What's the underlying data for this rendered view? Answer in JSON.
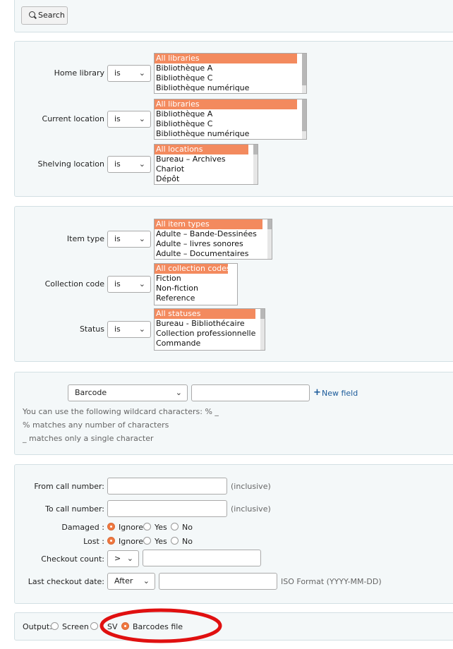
{
  "search_button": {
    "label": "Search"
  },
  "location_group": {
    "home_library": {
      "label": "Home library",
      "operator": "is",
      "options": [
        "All libraries",
        "Bibliothèque A",
        "Bibliothèque C",
        "Bibliothèque numérique"
      ]
    },
    "current_location": {
      "label": "Current location",
      "operator": "is",
      "options": [
        "All libraries",
        "Bibliothèque A",
        "Bibliothèque C",
        "Bibliothèque numérique"
      ]
    },
    "shelving_location": {
      "label": "Shelving location",
      "operator": "is",
      "options": [
        "All locations",
        "Bureau – Archives",
        "Chariot",
        "Dépôt"
      ]
    }
  },
  "item_group": {
    "item_type": {
      "label": "Item type",
      "operator": "is",
      "options": [
        "All item types",
        "Adulte – Bande-Dessinées",
        "Adulte – livres sonores",
        "Adulte – Documentaires"
      ]
    },
    "collection_code": {
      "label": "Collection code",
      "operator": "is",
      "options": [
        "All collection codes",
        "Fiction",
        "Non-fiction",
        "Reference"
      ]
    },
    "status": {
      "label": "Status",
      "operator": "is",
      "options": [
        "All statuses",
        "Bureau - Bibliothécaire",
        "Collection professionnelle",
        "Commande"
      ]
    }
  },
  "field_group": {
    "field_select": "Barcode",
    "field_value": "",
    "new_field_label": "New field",
    "wildcard_hint": "You can use the following wildcard characters: % _",
    "percent_hint": "% matches any number of characters",
    "underscore_hint": "_ matches only a single character"
  },
  "misc_group": {
    "from_call_number": {
      "label": "From call number:",
      "value": "",
      "hint": "(inclusive)"
    },
    "to_call_number": {
      "label": "To call number:",
      "value": "",
      "hint": "(inclusive)"
    },
    "damaged": {
      "label": "Damaged :",
      "options": [
        "Ignore",
        "Yes",
        "No"
      ],
      "selected": "Ignore"
    },
    "lost": {
      "label": "Lost :",
      "options": [
        "Ignore",
        "Yes",
        "No"
      ],
      "selected": "Ignore"
    },
    "checkout_count": {
      "label": "Checkout count:",
      "operator": ">",
      "value": ""
    },
    "last_checkout_date": {
      "label": "Last checkout date:",
      "operator": "After",
      "value": "",
      "hint": "ISO Format (YYYY-MM-DD)"
    }
  },
  "output_group": {
    "label": "Output:",
    "options": [
      "Screen",
      "SV",
      "Barcodes file"
    ],
    "selected": "Barcodes file",
    "annotation_color": "#e01010"
  },
  "colors": {
    "selected_option": "#f38a5e",
    "link": "#1a5a9a",
    "radio_on": "#f07840",
    "panel_bg": "#f4f8f9"
  }
}
